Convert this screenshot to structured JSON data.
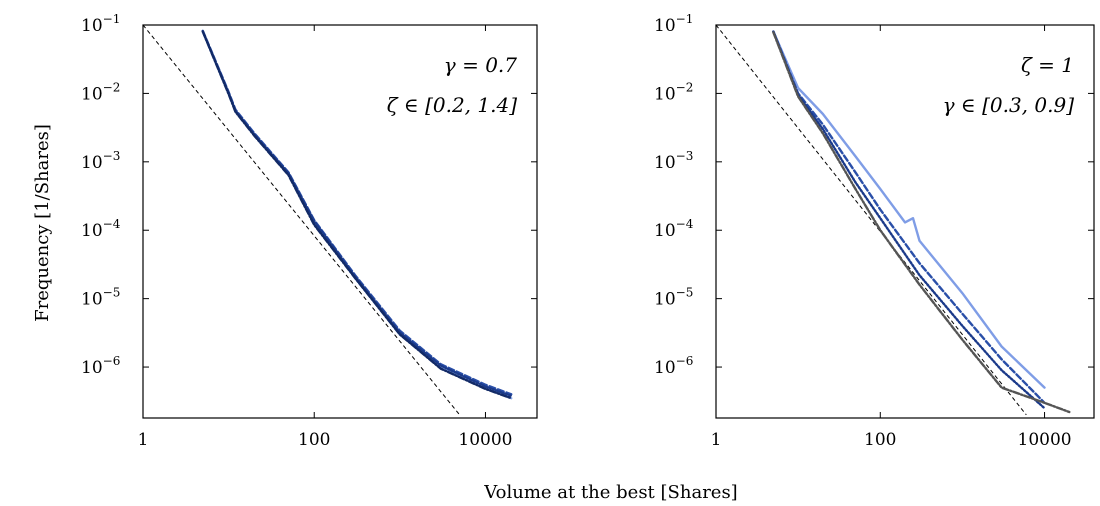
{
  "figure": {
    "ylabel": "Frequency [1/Shares]",
    "xlabel": "Volume at the best [Shares]"
  },
  "chart_data": [
    {
      "type": "line",
      "scale": "log-log",
      "xlim": [
        1,
        40000
      ],
      "ylim": [
        1.8e-07,
        0.1
      ],
      "xticks": [
        {
          "v": 1,
          "label": "1"
        },
        {
          "v": 100,
          "label": "100"
        },
        {
          "v": 10000,
          "label": "10000"
        }
      ],
      "yticks": [
        {
          "v": 0.1,
          "base": "10",
          "exp": "−1"
        },
        {
          "v": 0.01,
          "base": "10",
          "exp": "−2"
        },
        {
          "v": 0.001,
          "base": "10",
          "exp": "−3"
        },
        {
          "v": 0.0001,
          "base": "10",
          "exp": "−4"
        },
        {
          "v": 1e-05,
          "base": "10",
          "exp": "−5"
        },
        {
          "v": 1e-06,
          "base": "10",
          "exp": "−6"
        }
      ],
      "annotations": [
        "γ = 0.7",
        "ζ ∈ [0.2, 1.4]"
      ],
      "reference_line": {
        "x": [
          1,
          5000
        ],
        "y": [
          0.1,
          2e-07
        ],
        "style": "dashed",
        "color": "#000000"
      },
      "series": [
        {
          "color": "#8aa8e8",
          "style": "solid",
          "x": [
            5,
            10,
            12,
            20,
            50,
            100,
            300,
            1000,
            3000,
            10000,
            20000
          ],
          "y": [
            0.08,
            0.01,
            0.0055,
            0.0025,
            0.00065,
            0.00013,
            2e-05,
            3e-06,
            1e-06,
            5e-07,
            3.5e-07
          ]
        },
        {
          "color": "#2a4fa8",
          "style": "dashed",
          "x": [
            5,
            10,
            12,
            20,
            50,
            100,
            300,
            1000,
            3000,
            10000,
            20000
          ],
          "y": [
            0.082,
            0.0105,
            0.0058,
            0.0026,
            0.0007,
            0.00014,
            2.2e-05,
            3.4e-06,
            1.1e-06,
            5.5e-07,
            4e-07
          ]
        },
        {
          "color": "#1b3a8a",
          "style": "dotted",
          "x": [
            5,
            10,
            12,
            20,
            50,
            100,
            300,
            1000,
            3000,
            10000,
            20000
          ],
          "y": [
            0.081,
            0.0102,
            0.0056,
            0.0025,
            0.00068,
            0.000135,
            2.1e-05,
            3.2e-06,
            1.05e-06,
            5.2e-07,
            3.8e-07
          ]
        },
        {
          "color": "#122a66",
          "style": "dashdot",
          "x": [
            5,
            10,
            12,
            20,
            50,
            100,
            300,
            1000,
            3000,
            10000,
            20000
          ],
          "y": [
            0.08,
            0.0098,
            0.0054,
            0.0024,
            0.00064,
            0.00012,
            2e-05,
            3e-06,
            9.5e-07,
            4.8e-07,
            3.5e-07
          ]
        }
      ]
    },
    {
      "type": "line",
      "scale": "log-log",
      "xlim": [
        1,
        40000
      ],
      "ylim": [
        1.8e-07,
        0.1
      ],
      "xticks": [
        {
          "v": 1,
          "label": "1"
        },
        {
          "v": 100,
          "label": "100"
        },
        {
          "v": 10000,
          "label": "10000"
        }
      ],
      "yticks": [
        {
          "v": 0.1,
          "base": "10",
          "exp": "−1"
        },
        {
          "v": 0.01,
          "base": "10",
          "exp": "−2"
        },
        {
          "v": 0.001,
          "base": "10",
          "exp": "−3"
        },
        {
          "v": 0.0001,
          "base": "10",
          "exp": "−4"
        },
        {
          "v": 1e-05,
          "base": "10",
          "exp": "−5"
        },
        {
          "v": 1e-06,
          "base": "10",
          "exp": "−6"
        }
      ],
      "annotations": [
        "ζ = 1",
        "γ ∈ [0.3, 0.9]"
      ],
      "reference_line": {
        "x": [
          1,
          6000
        ],
        "y": [
          0.1,
          2e-07
        ],
        "style": "dashed",
        "color": "#000000"
      },
      "series": [
        {
          "color": "#7f9de6",
          "style": "solid",
          "x": [
            5,
            10,
            20,
            50,
            100,
            200,
            250,
            300,
            1000,
            3000,
            10000
          ],
          "y": [
            0.08,
            0.012,
            0.005,
            0.0012,
            0.0004,
            0.00013,
            0.00015,
            7e-05,
            1.2e-05,
            2e-06,
            5e-07
          ]
        },
        {
          "color": "#2a4fa8",
          "style": "dashed",
          "x": [
            5,
            10,
            20,
            50,
            100,
            300,
            1000,
            3000,
            10000
          ],
          "y": [
            0.08,
            0.01,
            0.0035,
            0.0007,
            0.0002,
            3.3e-05,
            6e-06,
            1.3e-06,
            3e-07
          ]
        },
        {
          "color": "#1b3a8a",
          "style": "dotted",
          "x": [
            5,
            10,
            20,
            50,
            100,
            300,
            1000,
            3000,
            10000
          ],
          "y": [
            0.08,
            0.0095,
            0.003,
            0.0005,
            0.00015,
            2.2e-05,
            4e-06,
            9e-07,
            2.5e-07
          ]
        },
        {
          "color": "#555555",
          "style": "dashdot",
          "x": [
            5,
            10,
            20,
            50,
            100,
            300,
            1000,
            3000,
            10000,
            20000
          ],
          "y": [
            0.078,
            0.009,
            0.0026,
            0.0004,
            0.0001,
            1.6e-05,
            2.5e-06,
            5e-07,
            3e-07,
            2.2e-07
          ]
        }
      ]
    }
  ]
}
